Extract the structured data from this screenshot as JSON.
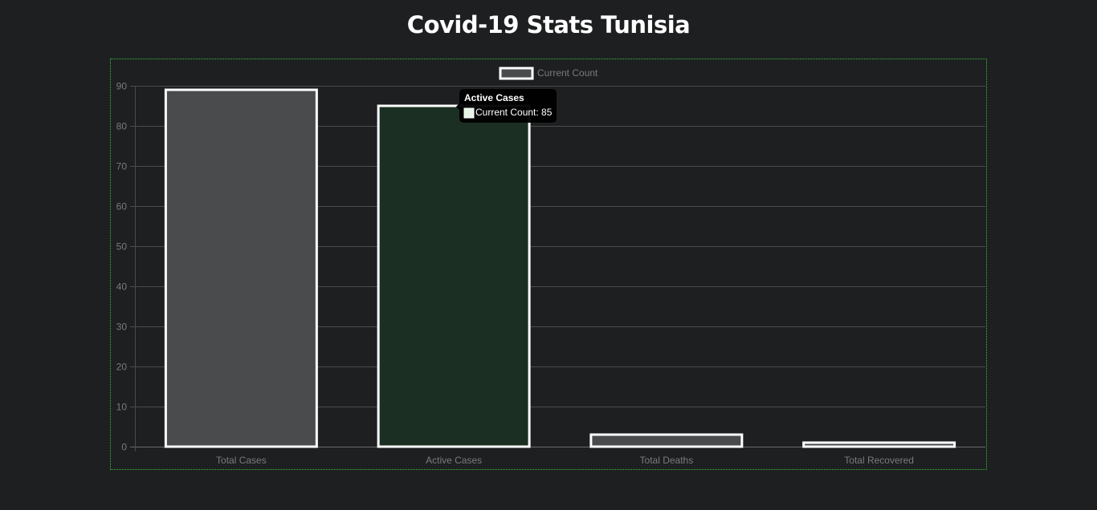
{
  "page": {
    "title": "Covid-19 Stats Tunisia"
  },
  "chart_data": {
    "type": "bar",
    "categories": [
      "Total Cases",
      "Active Cases",
      "Total Deaths",
      "Total Recovered"
    ],
    "series": [
      {
        "name": "Current Count",
        "values": [
          89,
          85,
          3,
          1
        ]
      }
    ],
    "bar_colors": [
      "#4a4b4d",
      "#1b3022",
      "#4a4b4d",
      "#4a4b4d"
    ],
    "bar_border_color": "#ffffff",
    "ylim": [
      0,
      90
    ],
    "yticks": [
      0,
      10,
      20,
      30,
      40,
      50,
      60,
      70,
      80,
      90
    ],
    "grid": true,
    "legend_position": "top-center",
    "tooltip": {
      "title": "Active Cases",
      "body": "Current Count: 85",
      "swatch_color": "#e6f5e6"
    }
  }
}
